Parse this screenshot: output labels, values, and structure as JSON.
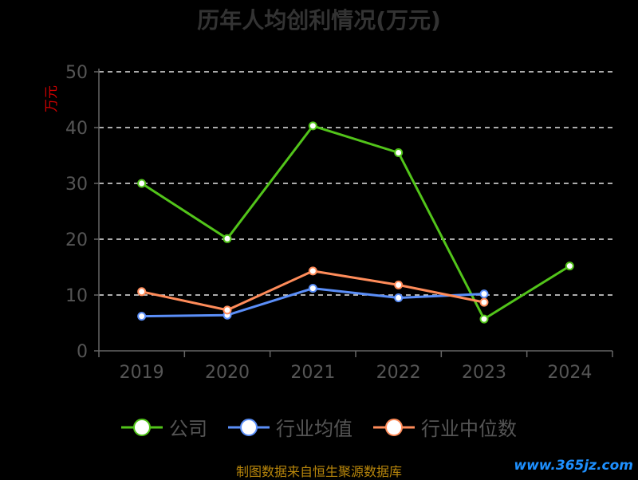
{
  "title": "历年人均创利情况(万元)",
  "footer": "制图数据来自恒生聚源数据库",
  "watermark": "www.365jz.com",
  "chart_data": {
    "type": "line",
    "title": "历年人均创利情况(万元)",
    "ylabel": "万元",
    "xlabel": "",
    "categories": [
      "2019",
      "2020",
      "2021",
      "2022",
      "2023",
      "2024"
    ],
    "ylim": [
      0,
      50
    ],
    "yticks": [
      0,
      10,
      20,
      30,
      40,
      50
    ],
    "grid": true,
    "legend_position": "bottom",
    "series": [
      {
        "name": "公司",
        "color": "#52c41a",
        "values": [
          30.0,
          20.1,
          40.3,
          35.5,
          5.7,
          15.2
        ]
      },
      {
        "name": "行业均值",
        "color": "#5b8ff9",
        "values": [
          6.2,
          6.4,
          11.2,
          9.5,
          10.2,
          null
        ]
      },
      {
        "name": "行业中位数",
        "color": "#ff8c5a",
        "values": [
          10.6,
          7.3,
          14.3,
          11.8,
          8.7,
          null
        ]
      }
    ]
  }
}
